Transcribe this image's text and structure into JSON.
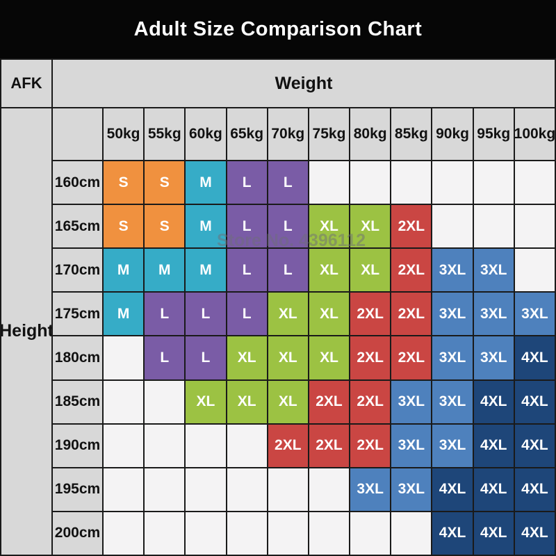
{
  "title": "Adult Size Comparison Chart",
  "corner_label": "AFK",
  "weight_header": "Weight",
  "height_header": "Height",
  "watermark": "Store No. 4396112",
  "colors": {
    "title_bg": "#060606",
    "title_fg": "#ffffff",
    "header_bg": "#d8d8d8",
    "empty_bg": "#f4f3f4",
    "grid_border": "#1a1a1a",
    "S": "#f0913f",
    "M": "#36acc7",
    "L": "#7a5ca6",
    "XL": "#9cc243",
    "2XL": "#ca4643",
    "3XL": "#4e81bd",
    "4XL": "#1e4679"
  },
  "chart_data": {
    "type": "table",
    "title": "Adult Size Comparison Chart",
    "xlabel": "Weight",
    "ylabel": "Height",
    "columns": [
      "50kg",
      "55kg",
      "60kg",
      "65kg",
      "70kg",
      "75kg",
      "80kg",
      "85kg",
      "90kg",
      "95kg",
      "100kg"
    ],
    "rows": [
      "160cm",
      "165cm",
      "170cm",
      "175cm",
      "180cm",
      "185cm",
      "190cm",
      "195cm",
      "200cm"
    ],
    "cells": [
      [
        "S",
        "S",
        "M",
        "L",
        "L",
        "",
        "",
        "",
        "",
        "",
        ""
      ],
      [
        "S",
        "S",
        "M",
        "L",
        "L",
        "XL",
        "XL",
        "2XL",
        "",
        "",
        ""
      ],
      [
        "M",
        "M",
        "M",
        "L",
        "L",
        "XL",
        "XL",
        "2XL",
        "3XL",
        "3XL",
        ""
      ],
      [
        "M",
        "L",
        "L",
        "L",
        "XL",
        "XL",
        "2XL",
        "2XL",
        "3XL",
        "3XL",
        "3XL"
      ],
      [
        "",
        "L",
        "L",
        "XL",
        "XL",
        "XL",
        "2XL",
        "2XL",
        "3XL",
        "3XL",
        "4XL"
      ],
      [
        "",
        "",
        "XL",
        "XL",
        "XL",
        "2XL",
        "2XL",
        "3XL",
        "3XL",
        "4XL",
        "4XL"
      ],
      [
        "",
        "",
        "",
        "",
        "2XL",
        "2XL",
        "2XL",
        "3XL",
        "3XL",
        "4XL",
        "4XL"
      ],
      [
        "",
        "",
        "",
        "",
        "",
        "",
        "3XL",
        "3XL",
        "4XL",
        "4XL",
        "4XL"
      ],
      [
        "",
        "",
        "",
        "",
        "",
        "",
        "",
        "",
        "4XL",
        "4XL",
        "4XL"
      ]
    ]
  }
}
